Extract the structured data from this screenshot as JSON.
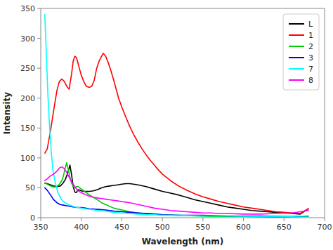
{
  "chart_data": {
    "type": "line",
    "xlabel": "Wavelength (nm)",
    "ylabel": "Intensity",
    "xlim": [
      350,
      700
    ],
    "ylim": [
      0,
      350
    ],
    "xticks": [
      350,
      400,
      450,
      500,
      550,
      600,
      650,
      700
    ],
    "yticks": [
      0,
      50,
      100,
      150,
      200,
      250,
      300,
      350
    ],
    "grid": false,
    "legend": "upper right",
    "series": [
      {
        "name": "L",
        "color": "#000000",
        "x": [
          355,
          358,
          362,
          366,
          370,
          374,
          377,
          380,
          382,
          384,
          386,
          388,
          390,
          392,
          394,
          396,
          398,
          400,
          403,
          406,
          410,
          415,
          420,
          425,
          430,
          435,
          440,
          445,
          450,
          455,
          460,
          470,
          480,
          490,
          500,
          510,
          520,
          530,
          540,
          550,
          560,
          570,
          580,
          590,
          600,
          610,
          620,
          630,
          640,
          650,
          660,
          670,
          680
        ],
        "values": [
          58,
          57,
          55,
          53,
          52,
          53,
          57,
          63,
          70,
          78,
          88,
          72,
          52,
          43,
          42,
          47,
          46,
          45,
          44,
          44,
          44,
          45,
          47,
          50,
          52,
          53,
          54,
          55,
          56,
          57,
          57,
          55,
          52,
          48,
          44,
          41,
          38,
          34,
          30,
          27,
          24,
          21,
          18,
          16,
          14,
          12,
          11,
          10,
          9,
          8,
          7,
          6,
          15
        ]
      },
      {
        "name": "1",
        "color": "#ff0000",
        "x": [
          355,
          358,
          362,
          366,
          370,
          373,
          376,
          379,
          382,
          385,
          388,
          390,
          392,
          394,
          396,
          398,
          400,
          403,
          406,
          410,
          413,
          416,
          419,
          422,
          425,
          427,
          430,
          433,
          436,
          440,
          443,
          446,
          450,
          455,
          460,
          465,
          470,
          475,
          480,
          485,
          490,
          495,
          500,
          510,
          520,
          530,
          540,
          550,
          560,
          570,
          580,
          590,
          600,
          610,
          620,
          630,
          640,
          650,
          660,
          670,
          680
        ],
        "values": [
          108,
          115,
          145,
          180,
          213,
          228,
          232,
          228,
          220,
          215,
          240,
          262,
          270,
          268,
          258,
          248,
          238,
          228,
          220,
          218,
          220,
          230,
          250,
          262,
          270,
          275,
          270,
          260,
          248,
          230,
          215,
          200,
          185,
          168,
          152,
          138,
          126,
          115,
          105,
          96,
          88,
          80,
          73,
          62,
          53,
          46,
          40,
          35,
          31,
          27,
          24,
          21,
          18,
          16,
          14,
          12,
          10,
          9,
          8,
          7,
          15
        ]
      },
      {
        "name": "2",
        "color": "#00cc00",
        "x": [
          355,
          358,
          362,
          366,
          370,
          373,
          376,
          378,
          380,
          382,
          384,
          386,
          388,
          390,
          392,
          394,
          396,
          398,
          400,
          403,
          406,
          410,
          415,
          420,
          425,
          430,
          440,
          450,
          460,
          470,
          480,
          490,
          500,
          520,
          540,
          560,
          580,
          600,
          640,
          680
        ],
        "values": [
          58,
          56,
          53,
          51,
          52,
          56,
          62,
          70,
          82,
          92,
          80,
          68,
          58,
          52,
          50,
          52,
          52,
          50,
          48,
          45,
          42,
          38,
          34,
          30,
          25,
          22,
          16,
          13,
          10,
          8,
          7,
          6,
          5,
          4,
          3,
          2,
          2,
          2,
          1,
          2
        ]
      },
      {
        "name": "3",
        "color": "#0000ff",
        "x": [
          355,
          358,
          362,
          366,
          370,
          374,
          378,
          382,
          386,
          390,
          395,
          400,
          405,
          410,
          420,
          430,
          440,
          450,
          460,
          470,
          480,
          490,
          500,
          520,
          550,
          580,
          620,
          660,
          680
        ],
        "values": [
          50,
          46,
          38,
          30,
          25,
          22,
          21,
          20,
          19,
          18,
          17,
          17,
          16,
          15,
          14,
          13,
          11,
          10,
          9,
          8,
          7,
          6,
          5,
          4,
          4,
          3,
          3,
          2,
          3
        ]
      },
      {
        "name": "7",
        "color": "#00ffff",
        "x": [
          355,
          357,
          359,
          361,
          363,
          365,
          368,
          371,
          374,
          377,
          380,
          384,
          388,
          392,
          396,
          400,
          405,
          410,
          420,
          430,
          440,
          450,
          460,
          470,
          480,
          490,
          500,
          520,
          550,
          580,
          620,
          660,
          680
        ],
        "values": [
          340,
          270,
          200,
          150,
          110,
          80,
          58,
          43,
          34,
          28,
          25,
          22,
          20,
          18,
          17,
          16,
          15,
          14,
          12,
          11,
          9,
          8,
          7,
          6,
          5,
          5,
          4,
          4,
          3,
          3,
          2,
          2,
          3
        ]
      },
      {
        "name": "8",
        "color": "#ff00ff",
        "x": [
          355,
          358,
          362,
          366,
          370,
          373,
          376,
          379,
          382,
          385,
          388,
          391,
          394,
          397,
          400,
          403,
          406,
          410,
          415,
          420,
          425,
          430,
          435,
          440,
          445,
          450,
          455,
          460,
          470,
          480,
          490,
          500,
          510,
          520,
          530,
          540,
          550,
          560,
          570,
          580,
          600,
          620,
          640,
          660,
          680
        ],
        "values": [
          62,
          65,
          70,
          73,
          78,
          83,
          85,
          82,
          76,
          68,
          60,
          54,
          48,
          44,
          42,
          40,
          38,
          36,
          34,
          33,
          32,
          31,
          30,
          29,
          28,
          27,
          26,
          25,
          22,
          19,
          16,
          14,
          12,
          11,
          10,
          9,
          8,
          8,
          7,
          7,
          6,
          6,
          7,
          8,
          12
        ]
      }
    ]
  }
}
